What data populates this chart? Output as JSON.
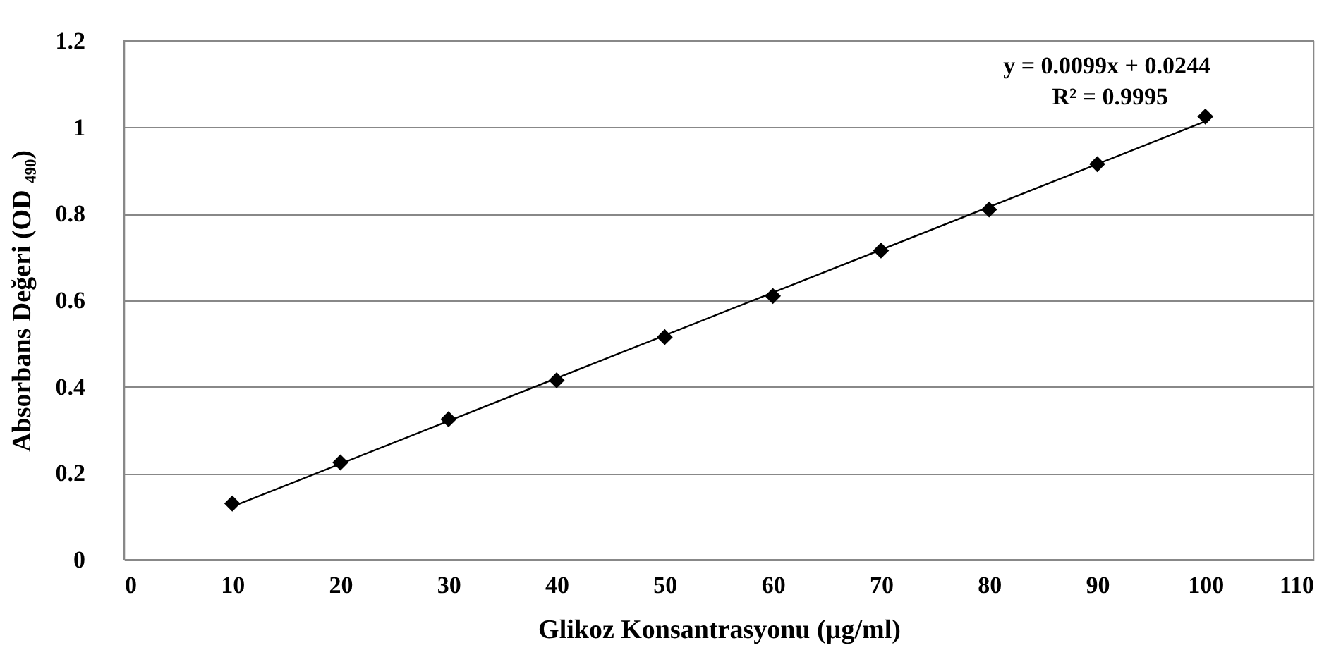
{
  "chart_data": {
    "type": "scatter",
    "xlabel": "Glikoz  Konsantrasyonu (µg/ml)",
    "ylabel": "Absorbans  Değeri (OD ₄₉₀)",
    "x": [
      10,
      20,
      30,
      40,
      50,
      60,
      70,
      80,
      90,
      100
    ],
    "series": [
      {
        "color": "#000000",
        "marker": "diamond",
        "values": [
          0.13,
          0.225,
          0.325,
          0.415,
          0.515,
          0.61,
          0.715,
          0.81,
          0.915,
          1.025
        ]
      },
      {
        "type": "line",
        "color": "#000000",
        "x": [
          10,
          100
        ],
        "values": [
          0.123,
          1.014
        ],
        "marker": "none",
        "line_style": "solid"
      }
    ],
    "xlim": [
      0,
      110
    ],
    "xticks": [
      0,
      10,
      20,
      30,
      40,
      50,
      60,
      70,
      80,
      90,
      100,
      110
    ],
    "ylim": [
      0,
      1.2
    ],
    "yticks": [
      0,
      0.2,
      0.4,
      0.6,
      0.8,
      1,
      1.2
    ],
    "grid": "y",
    "annotations": [
      "y = 0.0099x + 0.0244",
      "R² = 0.9995"
    ]
  }
}
